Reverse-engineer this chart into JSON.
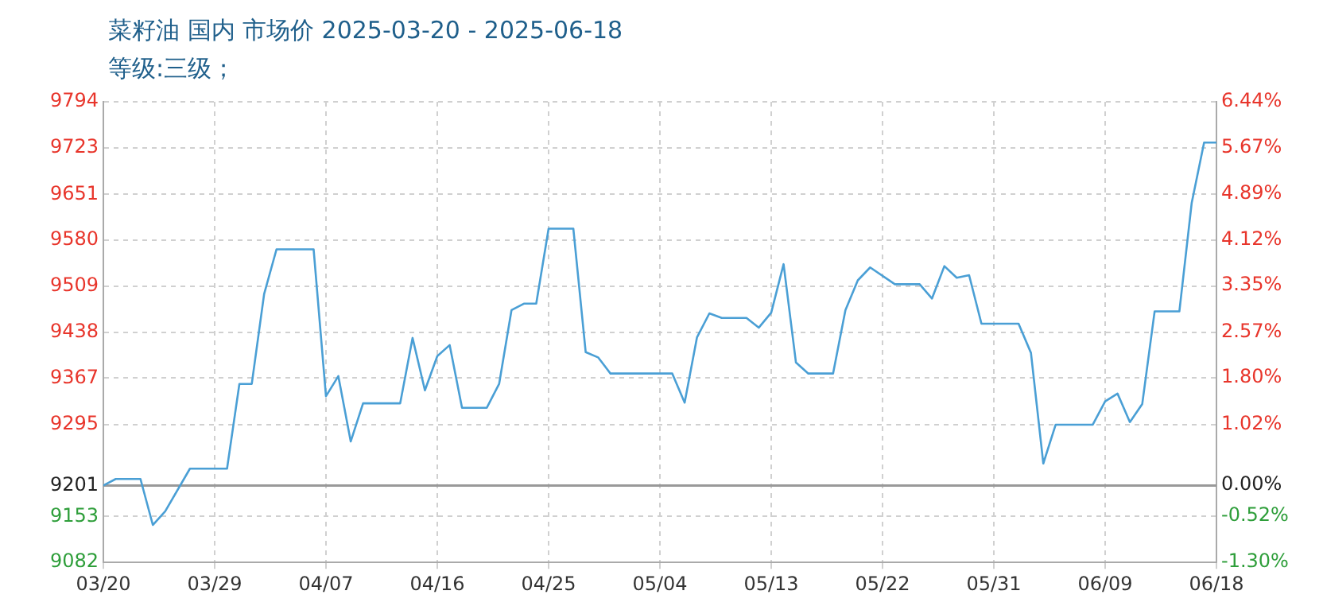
{
  "chart_data": {
    "type": "line",
    "title": "菜籽油 国内 市场价 2025-03-20 - 2025-06-18",
    "subtitle": "等级:三级；",
    "x": [
      "2025-03-20",
      "2025-03-21",
      "2025-03-23",
      "2025-03-24",
      "2025-03-25",
      "2025-03-27",
      "2025-03-30",
      "2025-03-31",
      "2025-04-01",
      "2025-04-02",
      "2025-04-03",
      "2025-04-06",
      "2025-04-07",
      "2025-04-08",
      "2025-04-09",
      "2025-04-10",
      "2025-04-13",
      "2025-04-14",
      "2025-04-15",
      "2025-04-16",
      "2025-04-17",
      "2025-04-18",
      "2025-04-20",
      "2025-04-21",
      "2025-04-22",
      "2025-04-23",
      "2025-04-24",
      "2025-04-25",
      "2025-04-27",
      "2025-04-28",
      "2025-04-29",
      "2025-04-30",
      "2025-05-05",
      "2025-05-06",
      "2025-05-07",
      "2025-05-08",
      "2025-05-09",
      "2025-05-11",
      "2025-05-12",
      "2025-05-13",
      "2025-05-14",
      "2025-05-15",
      "2025-05-16",
      "2025-05-18",
      "2025-05-19",
      "2025-05-20",
      "2025-05-21",
      "2025-05-23",
      "2025-05-25",
      "2025-05-26",
      "2025-05-27",
      "2025-05-28",
      "2025-05-29",
      "2025-05-30",
      "2025-06-02",
      "2025-06-03",
      "2025-06-04",
      "2025-06-05",
      "2025-06-08",
      "2025-06-09",
      "2025-06-10",
      "2025-06-11",
      "2025-06-12",
      "2025-06-13",
      "2025-06-15",
      "2025-06-16",
      "2025-06-17",
      "2025-06-18"
    ],
    "series": [
      {
        "color": "#4a9fd5",
        "values": [
          9201,
          9211,
          9211,
          9140,
          9161,
          9227,
          9227,
          9358,
          9358,
          9497,
          9566,
          9566,
          9339,
          9370,
          9269,
          9328,
          9328,
          9429,
          9348,
          9401,
          9418,
          9321,
          9321,
          9358,
          9472,
          9482,
          9482,
          9598,
          9598,
          9407,
          9399,
          9374,
          9374,
          9329,
          9430,
          9467,
          9460,
          9460,
          9445,
          9468,
          9543,
          9391,
          9374,
          9374,
          9472,
          9518,
          9538,
          9512,
          9512,
          9490,
          9540,
          9522,
          9526,
          9451,
          9451,
          9406,
          9235,
          9295,
          9295,
          9331,
          9343,
          9299,
          9327,
          9470,
          9470,
          9638,
          9731,
          9731
        ]
      }
    ],
    "xlim": [
      "2025-03-20",
      "2025-06-18"
    ],
    "xticks": [
      {
        "value": "2025-03-20",
        "label": "03/20"
      },
      {
        "value": "2025-03-29",
        "label": "03/29"
      },
      {
        "value": "2025-04-07",
        "label": "04/07"
      },
      {
        "value": "2025-04-16",
        "label": "04/16"
      },
      {
        "value": "2025-04-25",
        "label": "04/25"
      },
      {
        "value": "2025-05-04",
        "label": "05/04"
      },
      {
        "value": "2025-05-13",
        "label": "05/13"
      },
      {
        "value": "2025-05-22",
        "label": "05/22"
      },
      {
        "value": "2025-05-31",
        "label": "05/31"
      },
      {
        "value": "2025-06-09",
        "label": "06/09"
      },
      {
        "value": "2025-06-18",
        "label": "06/18"
      }
    ],
    "ylim": [
      9082,
      9794
    ],
    "yticks": [
      9082,
      9153,
      9201,
      9295,
      9367,
      9438,
      9509,
      9580,
      9651,
      9723,
      9794
    ],
    "y2lim": [
      -1.3,
      6.44
    ],
    "y2ticks": [
      {
        "value": -1.3,
        "label": "-1.30%"
      },
      {
        "value": -0.52,
        "label": "-0.52%"
      },
      {
        "value": 0,
        "label": "0.00%"
      },
      {
        "value": 1.02,
        "label": "1.02%"
      },
      {
        "value": 1.8,
        "label": "1.80%"
      },
      {
        "value": 2.57,
        "label": "2.57%"
      },
      {
        "value": 3.35,
        "label": "3.35%"
      },
      {
        "value": 4.12,
        "label": "4.12%"
      },
      {
        "value": 4.89,
        "label": "4.89%"
      },
      {
        "value": 5.67,
        "label": "5.67%"
      },
      {
        "value": 6.44,
        "label": "6.44%"
      }
    ],
    "ref_lines": [
      {
        "axis": "y",
        "value": 9201,
        "color": "#999999"
      }
    ],
    "grid": true
  }
}
